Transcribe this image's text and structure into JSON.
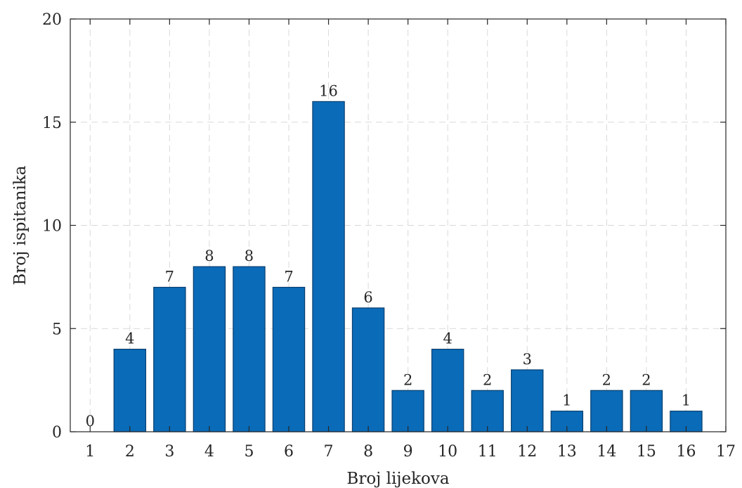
{
  "chart_data": {
    "type": "bar",
    "categories": [
      1,
      2,
      3,
      4,
      5,
      6,
      7,
      8,
      9,
      10,
      11,
      12,
      13,
      14,
      15,
      16
    ],
    "values": [
      0,
      4,
      7,
      8,
      8,
      7,
      16,
      6,
      2,
      4,
      2,
      3,
      1,
      2,
      2,
      1
    ],
    "title": "",
    "xlabel": "Broj lijekova",
    "ylabel": "Broj ispitanika",
    "xlim": [
      0.5,
      17
    ],
    "ylim": [
      0,
      20
    ],
    "xticks": [
      1,
      2,
      3,
      4,
      5,
      6,
      7,
      8,
      9,
      10,
      11,
      12,
      13,
      14,
      15,
      16,
      17
    ],
    "yticks": [
      0,
      5,
      10,
      15,
      20
    ],
    "grid": true,
    "data_labels": true,
    "bar_color": "#0a6bb8",
    "bar_edge_color": "#083f6f"
  }
}
